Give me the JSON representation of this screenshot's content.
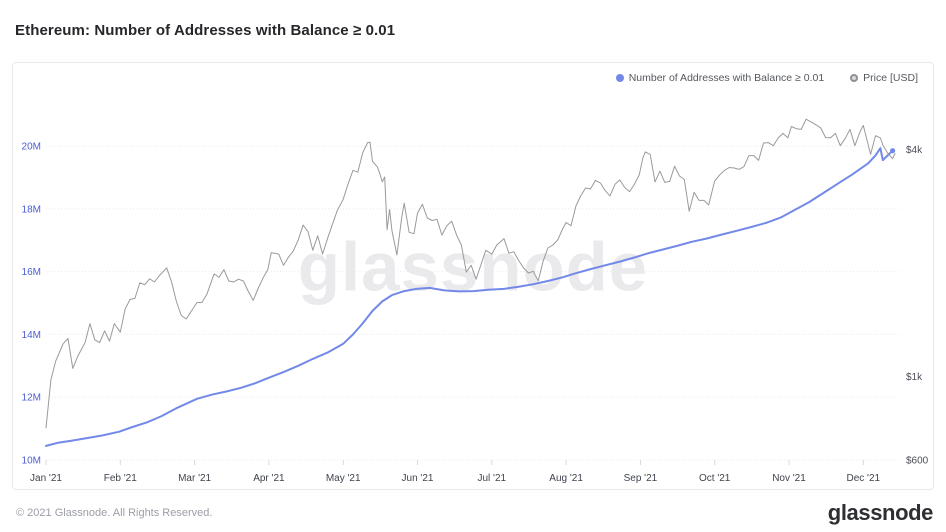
{
  "title": "Ethereum: Number of Addresses with Balance ≥ 0.01",
  "watermark": "glassnode",
  "footer": {
    "copyright": "© 2021 Glassnode. All Rights Reserved.",
    "logo_text": "glassnode"
  },
  "legend": [
    {
      "label": "Number of Addresses with Balance ≥ 0.01",
      "color": "#7289e8",
      "marker": "dot"
    },
    {
      "label": "Price [USD]",
      "color": "#8d9095",
      "marker": "donut"
    }
  ],
  "colors": {
    "grid": "#e9eaee",
    "axis_tick": "#d6d8de",
    "left_labels": "#4c5dd0",
    "right_labels": "#4a4d57",
    "x_labels": "#3f434e"
  },
  "chart_data": {
    "type": "line",
    "title": "Ethereum: Number of Addresses with Balance ≥ 0.01",
    "x_axis": {
      "ticks": [
        "Jan '21",
        "Feb '21",
        "Mar '21",
        "Apr '21",
        "May '21",
        "Jun '21",
        "Jul '21",
        "Aug '21",
        "Sep '21",
        "Oct '21",
        "Nov '21",
        "Dec '21"
      ],
      "range": [
        "2021-01-01",
        "2021-12-14"
      ],
      "grid": false
    },
    "y_axis_left": {
      "unit": "addresses (millions)",
      "ticks": [
        "10M",
        "12M",
        "14M",
        "16M",
        "18M",
        "20M"
      ],
      "tick_values": [
        10,
        12,
        14,
        16,
        18,
        20
      ],
      "range": [
        10,
        20.6
      ],
      "scale": "linear",
      "grid": true
    },
    "y_axis_right": {
      "unit": "USD",
      "ticks": [
        "$600",
        "$1k",
        "$4k"
      ],
      "tick_values": [
        600,
        1000,
        4000
      ],
      "range": [
        600,
        5200
      ],
      "scale": "log",
      "grid": false
    },
    "legend_position": "top-right",
    "series": [
      {
        "name": "Number of Addresses with Balance ≥ 0.01",
        "axis": "left",
        "color": "#7289e8",
        "width": 2,
        "end_marker": true,
        "points": [
          [
            "2021-01-01",
            10.45
          ],
          [
            "2021-01-06",
            10.55
          ],
          [
            "2021-01-12",
            10.62
          ],
          [
            "2021-01-18",
            10.7
          ],
          [
            "2021-01-24",
            10.78
          ],
          [
            "2021-01-31",
            10.9
          ],
          [
            "2021-02-06",
            11.05
          ],
          [
            "2021-02-12",
            11.2
          ],
          [
            "2021-02-18",
            11.4
          ],
          [
            "2021-02-24",
            11.65
          ],
          [
            "2021-03-02",
            11.95
          ],
          [
            "2021-03-08",
            12.08
          ],
          [
            "2021-03-14",
            12.18
          ],
          [
            "2021-03-20",
            12.3
          ],
          [
            "2021-03-26",
            12.45
          ],
          [
            "2021-04-01",
            12.62
          ],
          [
            "2021-04-07",
            12.8
          ],
          [
            "2021-04-13",
            13.0
          ],
          [
            "2021-04-19",
            13.22
          ],
          [
            "2021-04-25",
            13.42
          ],
          [
            "2021-05-01",
            13.7
          ],
          [
            "2021-05-05",
            14.0
          ],
          [
            "2021-05-09",
            14.35
          ],
          [
            "2021-05-13",
            14.75
          ],
          [
            "2021-05-17",
            15.05
          ],
          [
            "2021-05-21",
            15.25
          ],
          [
            "2021-05-26",
            15.38
          ],
          [
            "2021-05-31",
            15.45
          ],
          [
            "2021-06-06",
            15.48
          ],
          [
            "2021-06-12",
            15.4
          ],
          [
            "2021-06-18",
            15.37
          ],
          [
            "2021-06-24",
            15.38
          ],
          [
            "2021-06-30",
            15.42
          ],
          [
            "2021-07-06",
            15.45
          ],
          [
            "2021-07-12",
            15.52
          ],
          [
            "2021-07-18",
            15.6
          ],
          [
            "2021-07-24",
            15.7
          ],
          [
            "2021-07-30",
            15.82
          ],
          [
            "2021-08-05",
            15.95
          ],
          [
            "2021-08-11",
            16.08
          ],
          [
            "2021-08-17",
            16.2
          ],
          [
            "2021-08-23",
            16.32
          ],
          [
            "2021-08-29",
            16.45
          ],
          [
            "2021-09-04",
            16.58
          ],
          [
            "2021-09-10",
            16.7
          ],
          [
            "2021-09-16",
            16.82
          ],
          [
            "2021-09-22",
            16.95
          ],
          [
            "2021-09-28",
            17.05
          ],
          [
            "2021-10-04",
            17.18
          ],
          [
            "2021-10-10",
            17.3
          ],
          [
            "2021-10-16",
            17.42
          ],
          [
            "2021-10-22",
            17.55
          ],
          [
            "2021-10-28",
            17.72
          ],
          [
            "2021-11-03",
            17.95
          ],
          [
            "2021-11-09",
            18.2
          ],
          [
            "2021-11-15",
            18.5
          ],
          [
            "2021-11-21",
            18.8
          ],
          [
            "2021-11-27",
            19.1
          ],
          [
            "2021-12-03",
            19.45
          ],
          [
            "2021-12-06",
            19.7
          ],
          [
            "2021-12-08",
            19.93
          ],
          [
            "2021-12-09",
            19.55
          ],
          [
            "2021-12-11",
            19.7
          ],
          [
            "2021-12-13",
            19.85
          ]
        ]
      },
      {
        "name": "Price [USD]",
        "axis": "right",
        "color": "#9a9a9a",
        "width": 1,
        "end_marker": false,
        "points": [
          [
            "2021-01-01",
            730
          ],
          [
            "2021-01-03",
            980
          ],
          [
            "2021-01-05",
            1100
          ],
          [
            "2021-01-08",
            1220
          ],
          [
            "2021-01-10",
            1260
          ],
          [
            "2021-01-12",
            1050
          ],
          [
            "2021-01-14",
            1130
          ],
          [
            "2021-01-17",
            1230
          ],
          [
            "2021-01-19",
            1380
          ],
          [
            "2021-01-21",
            1250
          ],
          [
            "2021-01-23",
            1230
          ],
          [
            "2021-01-25",
            1320
          ],
          [
            "2021-01-27",
            1240
          ],
          [
            "2021-01-29",
            1380
          ],
          [
            "2021-02-01",
            1310
          ],
          [
            "2021-02-03",
            1510
          ],
          [
            "2021-02-05",
            1600
          ],
          [
            "2021-02-07",
            1610
          ],
          [
            "2021-02-09",
            1770
          ],
          [
            "2021-02-11",
            1750
          ],
          [
            "2021-02-13",
            1815
          ],
          [
            "2021-02-15",
            1780
          ],
          [
            "2021-02-17",
            1850
          ],
          [
            "2021-02-20",
            1940
          ],
          [
            "2021-02-22",
            1780
          ],
          [
            "2021-02-24",
            1580
          ],
          [
            "2021-02-26",
            1450
          ],
          [
            "2021-02-28",
            1420
          ],
          [
            "2021-03-02",
            1570
          ],
          [
            "2021-03-04",
            1570
          ],
          [
            "2021-03-06",
            1650
          ],
          [
            "2021-03-09",
            1870
          ],
          [
            "2021-03-11",
            1830
          ],
          [
            "2021-03-13",
            1920
          ],
          [
            "2021-03-15",
            1790
          ],
          [
            "2021-03-17",
            1780
          ],
          [
            "2021-03-19",
            1810
          ],
          [
            "2021-03-21",
            1790
          ],
          [
            "2021-03-23",
            1680
          ],
          [
            "2021-03-25",
            1590
          ],
          [
            "2021-03-27",
            1710
          ],
          [
            "2021-03-29",
            1820
          ],
          [
            "2021-03-31",
            1920
          ],
          [
            "2021-04-02",
            2130
          ],
          [
            "2021-04-05",
            2110
          ],
          [
            "2021-04-07",
            1970
          ],
          [
            "2021-04-09",
            2070
          ],
          [
            "2021-04-11",
            2150
          ],
          [
            "2021-04-13",
            2300
          ],
          [
            "2021-04-15",
            2520
          ],
          [
            "2021-04-17",
            2420
          ],
          [
            "2021-04-19",
            2160
          ],
          [
            "2021-04-21",
            2360
          ],
          [
            "2021-04-23",
            2110
          ],
          [
            "2021-04-25",
            2320
          ],
          [
            "2021-04-27",
            2530
          ],
          [
            "2021-04-29",
            2750
          ],
          [
            "2021-05-01",
            2950
          ],
          [
            "2021-05-03",
            3240
          ],
          [
            "2021-05-05",
            3520
          ],
          [
            "2021-05-07",
            3480
          ],
          [
            "2021-05-09",
            3920
          ],
          [
            "2021-05-11",
            4170
          ],
          [
            "2021-05-12",
            4180
          ],
          [
            "2021-05-13",
            3720
          ],
          [
            "2021-05-15",
            3590
          ],
          [
            "2021-05-16",
            3450
          ],
          [
            "2021-05-17",
            3280
          ],
          [
            "2021-05-18",
            3380
          ],
          [
            "2021-05-19",
            2450
          ],
          [
            "2021-05-20",
            2770
          ],
          [
            "2021-05-21",
            2430
          ],
          [
            "2021-05-23",
            2100
          ],
          [
            "2021-05-25",
            2650
          ],
          [
            "2021-05-26",
            2880
          ],
          [
            "2021-05-28",
            2410
          ],
          [
            "2021-05-30",
            2390
          ],
          [
            "2021-06-01",
            2710
          ],
          [
            "2021-06-03",
            2860
          ],
          [
            "2021-06-05",
            2630
          ],
          [
            "2021-06-07",
            2590
          ],
          [
            "2021-06-09",
            2610
          ],
          [
            "2021-06-11",
            2370
          ],
          [
            "2021-06-13",
            2510
          ],
          [
            "2021-06-15",
            2580
          ],
          [
            "2021-06-17",
            2370
          ],
          [
            "2021-06-19",
            2230
          ],
          [
            "2021-06-21",
            1890
          ],
          [
            "2021-06-23",
            1970
          ],
          [
            "2021-06-25",
            1810
          ],
          [
            "2021-06-27",
            1980
          ],
          [
            "2021-06-29",
            2160
          ],
          [
            "2021-07-01",
            2110
          ],
          [
            "2021-07-03",
            2230
          ],
          [
            "2021-07-06",
            2320
          ],
          [
            "2021-07-08",
            2120
          ],
          [
            "2021-07-10",
            2140
          ],
          [
            "2021-07-12",
            2030
          ],
          [
            "2021-07-14",
            1940
          ],
          [
            "2021-07-16",
            1880
          ],
          [
            "2021-07-18",
            1900
          ],
          [
            "2021-07-20",
            1790
          ],
          [
            "2021-07-22",
            2020
          ],
          [
            "2021-07-24",
            2190
          ],
          [
            "2021-07-26",
            2230
          ],
          [
            "2021-07-28",
            2300
          ],
          [
            "2021-07-30",
            2460
          ],
          [
            "2021-08-01",
            2560
          ],
          [
            "2021-08-03",
            2510
          ],
          [
            "2021-08-05",
            2830
          ],
          [
            "2021-08-07",
            3010
          ],
          [
            "2021-08-09",
            3160
          ],
          [
            "2021-08-11",
            3140
          ],
          [
            "2021-08-13",
            3310
          ],
          [
            "2021-08-15",
            3260
          ],
          [
            "2021-08-17",
            3110
          ],
          [
            "2021-08-19",
            3010
          ],
          [
            "2021-08-21",
            3230
          ],
          [
            "2021-08-23",
            3320
          ],
          [
            "2021-08-25",
            3170
          ],
          [
            "2021-08-27",
            3090
          ],
          [
            "2021-08-29",
            3230
          ],
          [
            "2021-08-31",
            3430
          ],
          [
            "2021-09-02",
            3790
          ],
          [
            "2021-09-03",
            3940
          ],
          [
            "2021-09-05",
            3880
          ],
          [
            "2021-09-07",
            3280
          ],
          [
            "2021-09-09",
            3500
          ],
          [
            "2021-09-11",
            3270
          ],
          [
            "2021-09-13",
            3290
          ],
          [
            "2021-09-15",
            3610
          ],
          [
            "2021-09-17",
            3400
          ],
          [
            "2021-09-19",
            3330
          ],
          [
            "2021-09-21",
            2740
          ],
          [
            "2021-09-23",
            3080
          ],
          [
            "2021-09-25",
            2930
          ],
          [
            "2021-09-27",
            2930
          ],
          [
            "2021-09-29",
            2850
          ],
          [
            "2021-10-01",
            3300
          ],
          [
            "2021-10-03",
            3420
          ],
          [
            "2021-10-05",
            3520
          ],
          [
            "2021-10-07",
            3580
          ],
          [
            "2021-10-09",
            3570
          ],
          [
            "2021-10-11",
            3540
          ],
          [
            "2021-10-13",
            3600
          ],
          [
            "2021-10-15",
            3850
          ],
          [
            "2021-10-17",
            3850
          ],
          [
            "2021-10-19",
            3740
          ],
          [
            "2021-10-21",
            4160
          ],
          [
            "2021-10-23",
            4170
          ],
          [
            "2021-10-25",
            4090
          ],
          [
            "2021-10-27",
            4290
          ],
          [
            "2021-10-29",
            4410
          ],
          [
            "2021-10-31",
            4290
          ],
          [
            "2021-11-02",
            4600
          ],
          [
            "2021-11-04",
            4540
          ],
          [
            "2021-11-06",
            4520
          ],
          [
            "2021-11-08",
            4810
          ],
          [
            "2021-11-10",
            4730
          ],
          [
            "2021-11-12",
            4650
          ],
          [
            "2021-11-14",
            4560
          ],
          [
            "2021-11-16",
            4300
          ],
          [
            "2021-11-18",
            4290
          ],
          [
            "2021-11-20",
            4410
          ],
          [
            "2021-11-22",
            4090
          ],
          [
            "2021-11-24",
            4270
          ],
          [
            "2021-11-26",
            4520
          ],
          [
            "2021-11-28",
            4090
          ],
          [
            "2021-11-30",
            4440
          ],
          [
            "2021-12-01",
            4630
          ],
          [
            "2021-12-03",
            4110
          ],
          [
            "2021-12-04",
            3880
          ],
          [
            "2021-12-06",
            4350
          ],
          [
            "2021-12-08",
            4290
          ],
          [
            "2021-12-09",
            4110
          ],
          [
            "2021-12-11",
            3910
          ],
          [
            "2021-12-13",
            3780
          ],
          [
            "2021-12-14",
            3900
          ]
        ]
      }
    ]
  }
}
